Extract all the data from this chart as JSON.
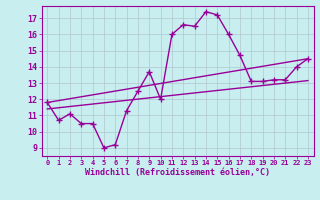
{
  "xlabel": "Windchill (Refroidissement éolien,°C)",
  "bg_color": "#c8eef0",
  "line_color": "#990099",
  "grid_color": "#b0c8d0",
  "xlim": [
    -0.5,
    23.5
  ],
  "ylim": [
    8.5,
    17.75
  ],
  "yticks": [
    9,
    10,
    11,
    12,
    13,
    14,
    15,
    16,
    17
  ],
  "xticks": [
    0,
    1,
    2,
    3,
    4,
    5,
    6,
    7,
    8,
    9,
    10,
    11,
    12,
    13,
    14,
    15,
    16,
    17,
    18,
    19,
    20,
    21,
    22,
    23
  ],
  "series1_x": [
    0,
    1,
    2,
    3,
    4,
    5,
    6,
    7,
    8,
    9,
    10,
    11,
    12,
    13,
    14,
    15,
    16,
    17,
    18,
    19,
    20,
    21,
    22,
    23
  ],
  "series1_y": [
    11.8,
    10.7,
    11.1,
    10.5,
    10.5,
    9.0,
    9.2,
    11.3,
    12.5,
    13.7,
    12.0,
    16.0,
    16.6,
    16.5,
    17.4,
    17.2,
    16.0,
    14.7,
    13.1,
    13.1,
    13.2,
    13.2,
    14.0,
    14.5
  ],
  "series2_x": [
    0,
    23
  ],
  "series2_y": [
    11.8,
    14.5
  ],
  "series3_x": [
    0,
    23
  ],
  "series3_y": [
    11.4,
    13.15
  ],
  "marker_size": 4,
  "linewidth": 1.0
}
